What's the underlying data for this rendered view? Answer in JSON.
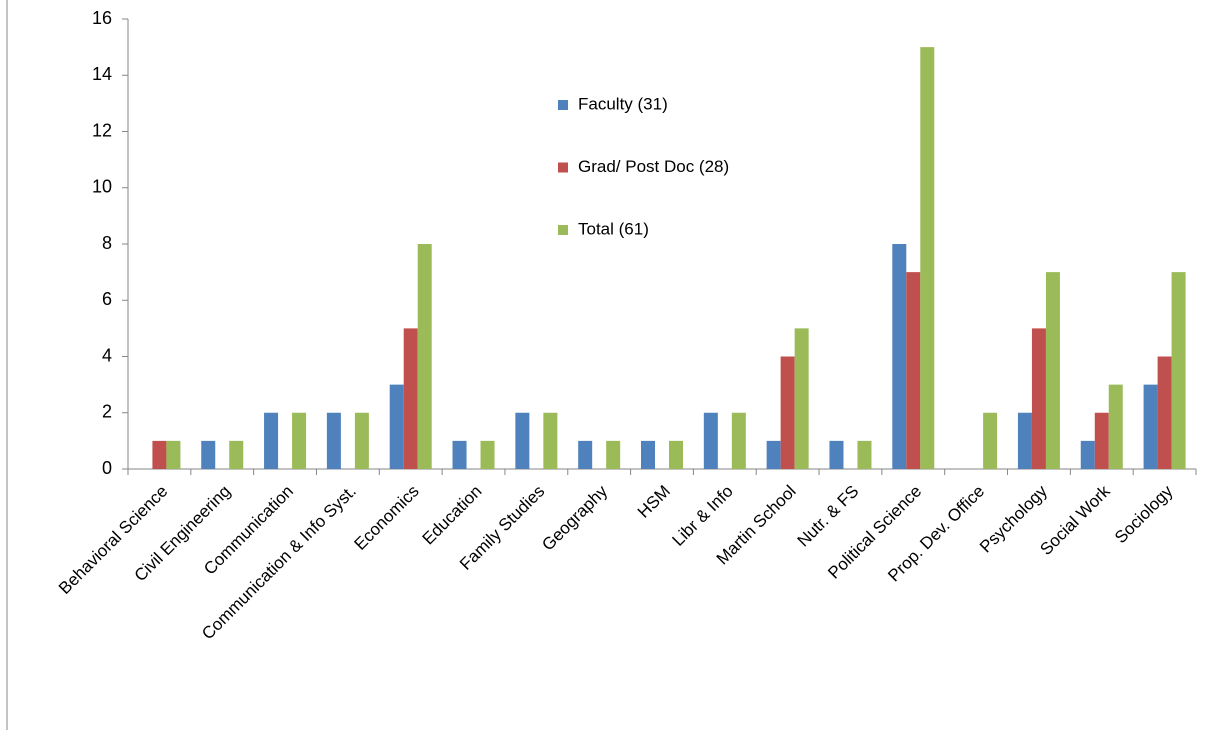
{
  "chart_data": {
    "type": "bar",
    "categories": [
      "Behavioral Science",
      "Civil Engineering",
      "Communication",
      "Communication & Info Syst.",
      "Economics",
      "Education",
      "Family Studies",
      "Geography",
      "HSM",
      "Libr & Info",
      "Martin School",
      "Nutr. & FS",
      "Political Science",
      "Prop. Dev. Office",
      "Psychology",
      "Social Work",
      "Sociology"
    ],
    "series": [
      {
        "name": "Faculty (31)",
        "color": "#4f81bd",
        "values": [
          0,
          1,
          2,
          2,
          3,
          1,
          2,
          1,
          1,
          2,
          1,
          1,
          8,
          0,
          2,
          1,
          3
        ]
      },
      {
        "name": "Grad/ Post Doc (28)",
        "color": "#c0504d",
        "values": [
          1,
          0,
          0,
          0,
          5,
          0,
          0,
          0,
          0,
          0,
          4,
          0,
          7,
          0,
          5,
          2,
          4
        ]
      },
      {
        "name": "Total (61)",
        "color": "#9bbb59",
        "values": [
          1,
          1,
          2,
          2,
          8,
          1,
          2,
          1,
          1,
          2,
          5,
          1,
          15,
          2,
          7,
          3,
          7
        ]
      }
    ],
    "ylim": [
      0,
      16
    ],
    "yticks": [
      0,
      2,
      4,
      6,
      8,
      10,
      12,
      14,
      16
    ],
    "grid": false
  }
}
